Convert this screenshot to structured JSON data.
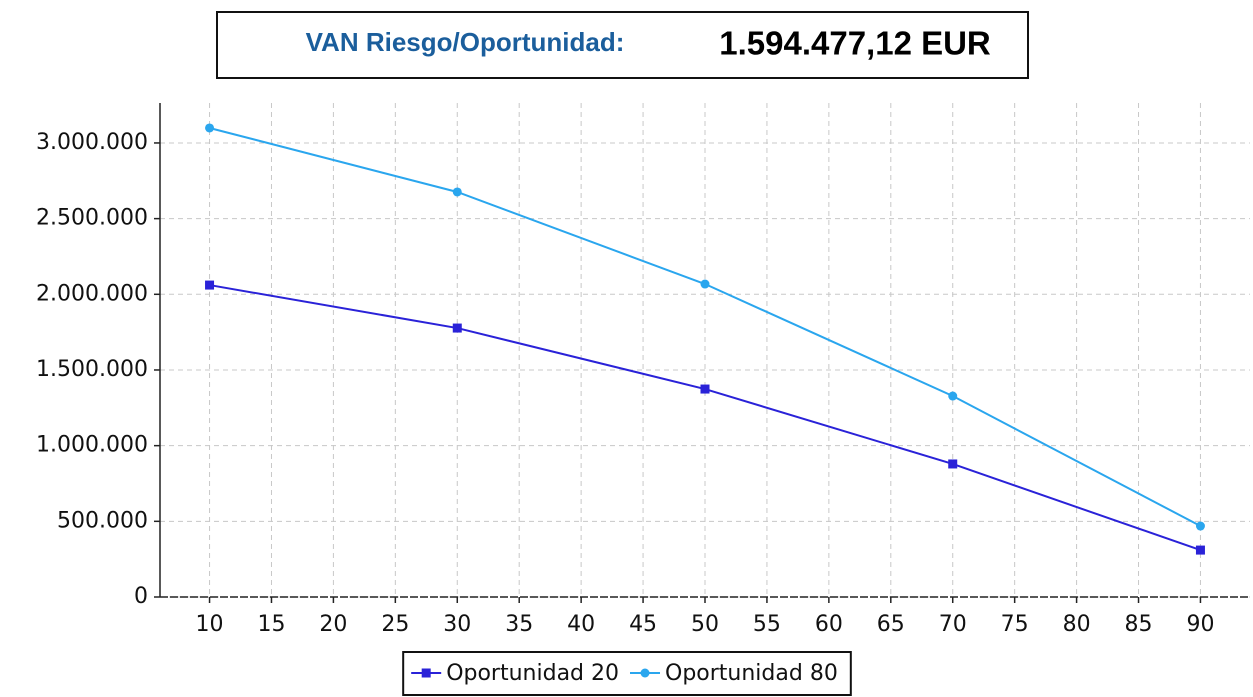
{
  "header": {
    "label": "VAN Riesgo/Oportunidad:",
    "value": "1.594.477,12 EUR"
  },
  "chart_data": {
    "type": "line",
    "x": [
      10,
      30,
      50,
      70,
      90
    ],
    "series": [
      {
        "name": "Oportunidad 20",
        "color": "#2a22d8",
        "marker": "square",
        "values": [
          2061000,
          1777000,
          1374000,
          879000,
          310000
        ]
      },
      {
        "name": "Oportunidad 80",
        "color": "#2aa6ee",
        "marker": "circle",
        "values": [
          3099000,
          2676000,
          2068000,
          1328000,
          469000
        ]
      }
    ],
    "xlim": [
      6,
      94
    ],
    "xticks": [
      10,
      15,
      20,
      25,
      30,
      35,
      40,
      45,
      50,
      55,
      60,
      65,
      70,
      75,
      80,
      85,
      90
    ],
    "ylim": [
      0,
      3264000
    ],
    "yticks": [
      0,
      {
        "value": 500000,
        "label": "500.000"
      },
      {
        "value": 1000000,
        "label": "1.000.000"
      },
      {
        "value": 1500000,
        "label": "1.500.000"
      },
      {
        "value": 2000000,
        "label": "2.000.000"
      },
      {
        "value": 2500000,
        "label": "2.500.000"
      },
      {
        "value": 3000000,
        "label": "3.000.000"
      }
    ],
    "grid": true,
    "legend": "bottom"
  }
}
